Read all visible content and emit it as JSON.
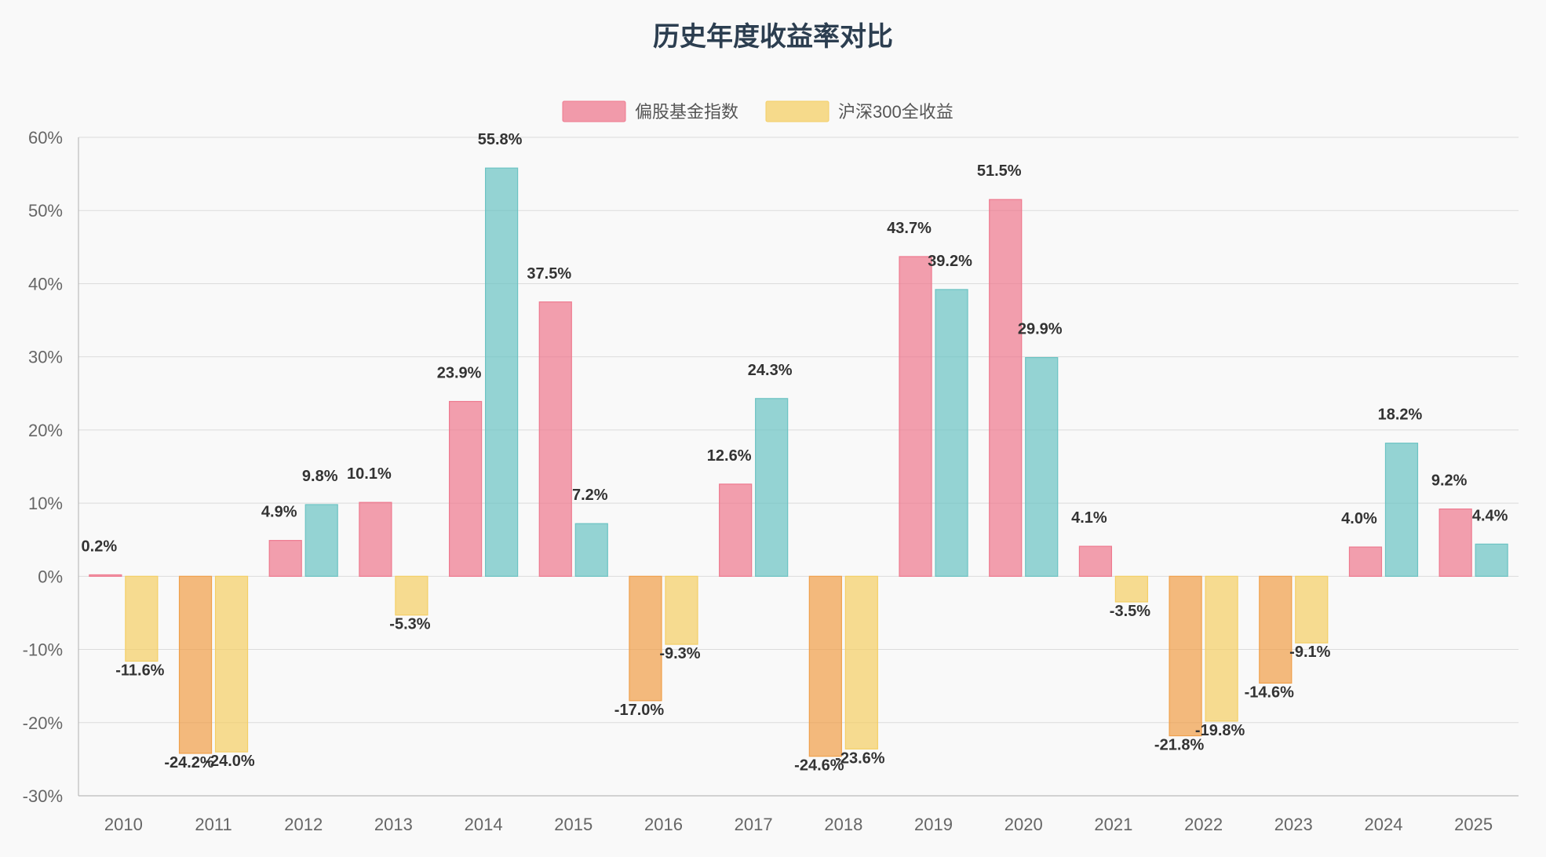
{
  "chart_data": {
    "type": "bar",
    "title": "历史年度收益率对比",
    "xlabel": "",
    "ylabel": "",
    "ylim": [
      -30,
      60
    ],
    "ytick_step": 10,
    "y_tick_suffix": "%",
    "grid": true,
    "legend_position": "top-center",
    "categories": [
      "2010",
      "2011",
      "2012",
      "2013",
      "2014",
      "2015",
      "2016",
      "2017",
      "2018",
      "2019",
      "2020",
      "2021",
      "2022",
      "2023",
      "2024",
      "2025"
    ],
    "series": [
      {
        "name": "偏股基金指数",
        "color": "#ee7a8f",
        "negative_color": "#f0a04b",
        "values": [
          0.2,
          -24.2,
          4.9,
          10.1,
          23.9,
          37.5,
          -17.0,
          12.6,
          -24.6,
          43.7,
          51.5,
          4.1,
          -21.8,
          -14.6,
          4.0,
          9.2
        ],
        "labels": [
          "0.2%",
          "-24.2%",
          "4.9%",
          "10.1%",
          "23.9%",
          "37.5%",
          "-17.0%",
          "12.6%",
          "-24.6%",
          "43.7%",
          "51.5%",
          "4.1%",
          "-21.8%",
          "-14.6%",
          "4.0%",
          "9.2%"
        ]
      },
      {
        "name": "沪深300全收益",
        "color": "#f4cf66",
        "positive_color": "#6cc3c3",
        "values": [
          -11.6,
          -24.0,
          9.8,
          -5.3,
          55.8,
          7.2,
          -9.3,
          24.3,
          -23.6,
          39.2,
          29.9,
          -3.5,
          -19.8,
          -9.1,
          18.2,
          4.4
        ],
        "labels": [
          "-11.6%",
          "-24.0%",
          "9.8%",
          "-5.3%",
          "55.8%",
          "7.2%",
          "-9.3%",
          "24.3%",
          "-23.6%",
          "39.2%",
          "29.9%",
          "-3.5%",
          "-19.8%",
          "-9.1%",
          "18.2%",
          "4.4%"
        ]
      }
    ]
  }
}
